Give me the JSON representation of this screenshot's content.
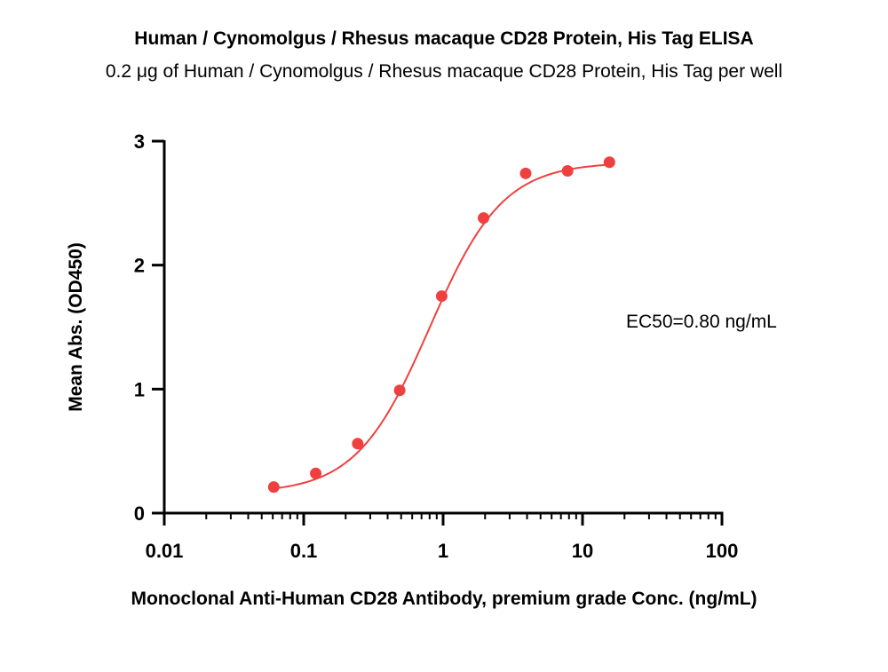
{
  "chart_data": {
    "type": "scatter",
    "title": "Human / Cynomolgus / Rhesus macaque CD28 Protein, His Tag ELISA",
    "subtitle": "0.2 μg of Human / Cynomolgus / Rhesus macaque CD28 Protein, His Tag per well",
    "xlabel": "Monoclonal Anti-Human CD28 Antibody, premium grade Conc. (ng/mL)",
    "ylabel": "Mean Abs. (OD450)",
    "x_scale": "log",
    "xlim": [
      0.01,
      100
    ],
    "ylim": [
      0,
      3
    ],
    "x_ticks": [
      0.01,
      0.1,
      1,
      10,
      100
    ],
    "x_tick_labels": [
      "0.01",
      "0.1",
      "1",
      "10",
      "100"
    ],
    "y_ticks": [
      0,
      1,
      2,
      3
    ],
    "y_tick_labels": [
      "0",
      "1",
      "2",
      "3"
    ],
    "grid": false,
    "annotation": "EC50=0.80 ng/mL",
    "color": "#ef4040",
    "series": [
      {
        "x": [
          0.061,
          0.122,
          0.244,
          0.488,
          0.977,
          1.95,
          3.91,
          7.81,
          15.6
        ],
        "y": [
          0.21,
          0.32,
          0.56,
          0.99,
          1.75,
          2.38,
          2.74,
          2.76,
          2.83
        ]
      }
    ],
    "fit_curve": {
      "model": "4PL",
      "bottom": 0.16,
      "top": 2.83,
      "ec50": 0.8,
      "hill": 1.65
    }
  }
}
